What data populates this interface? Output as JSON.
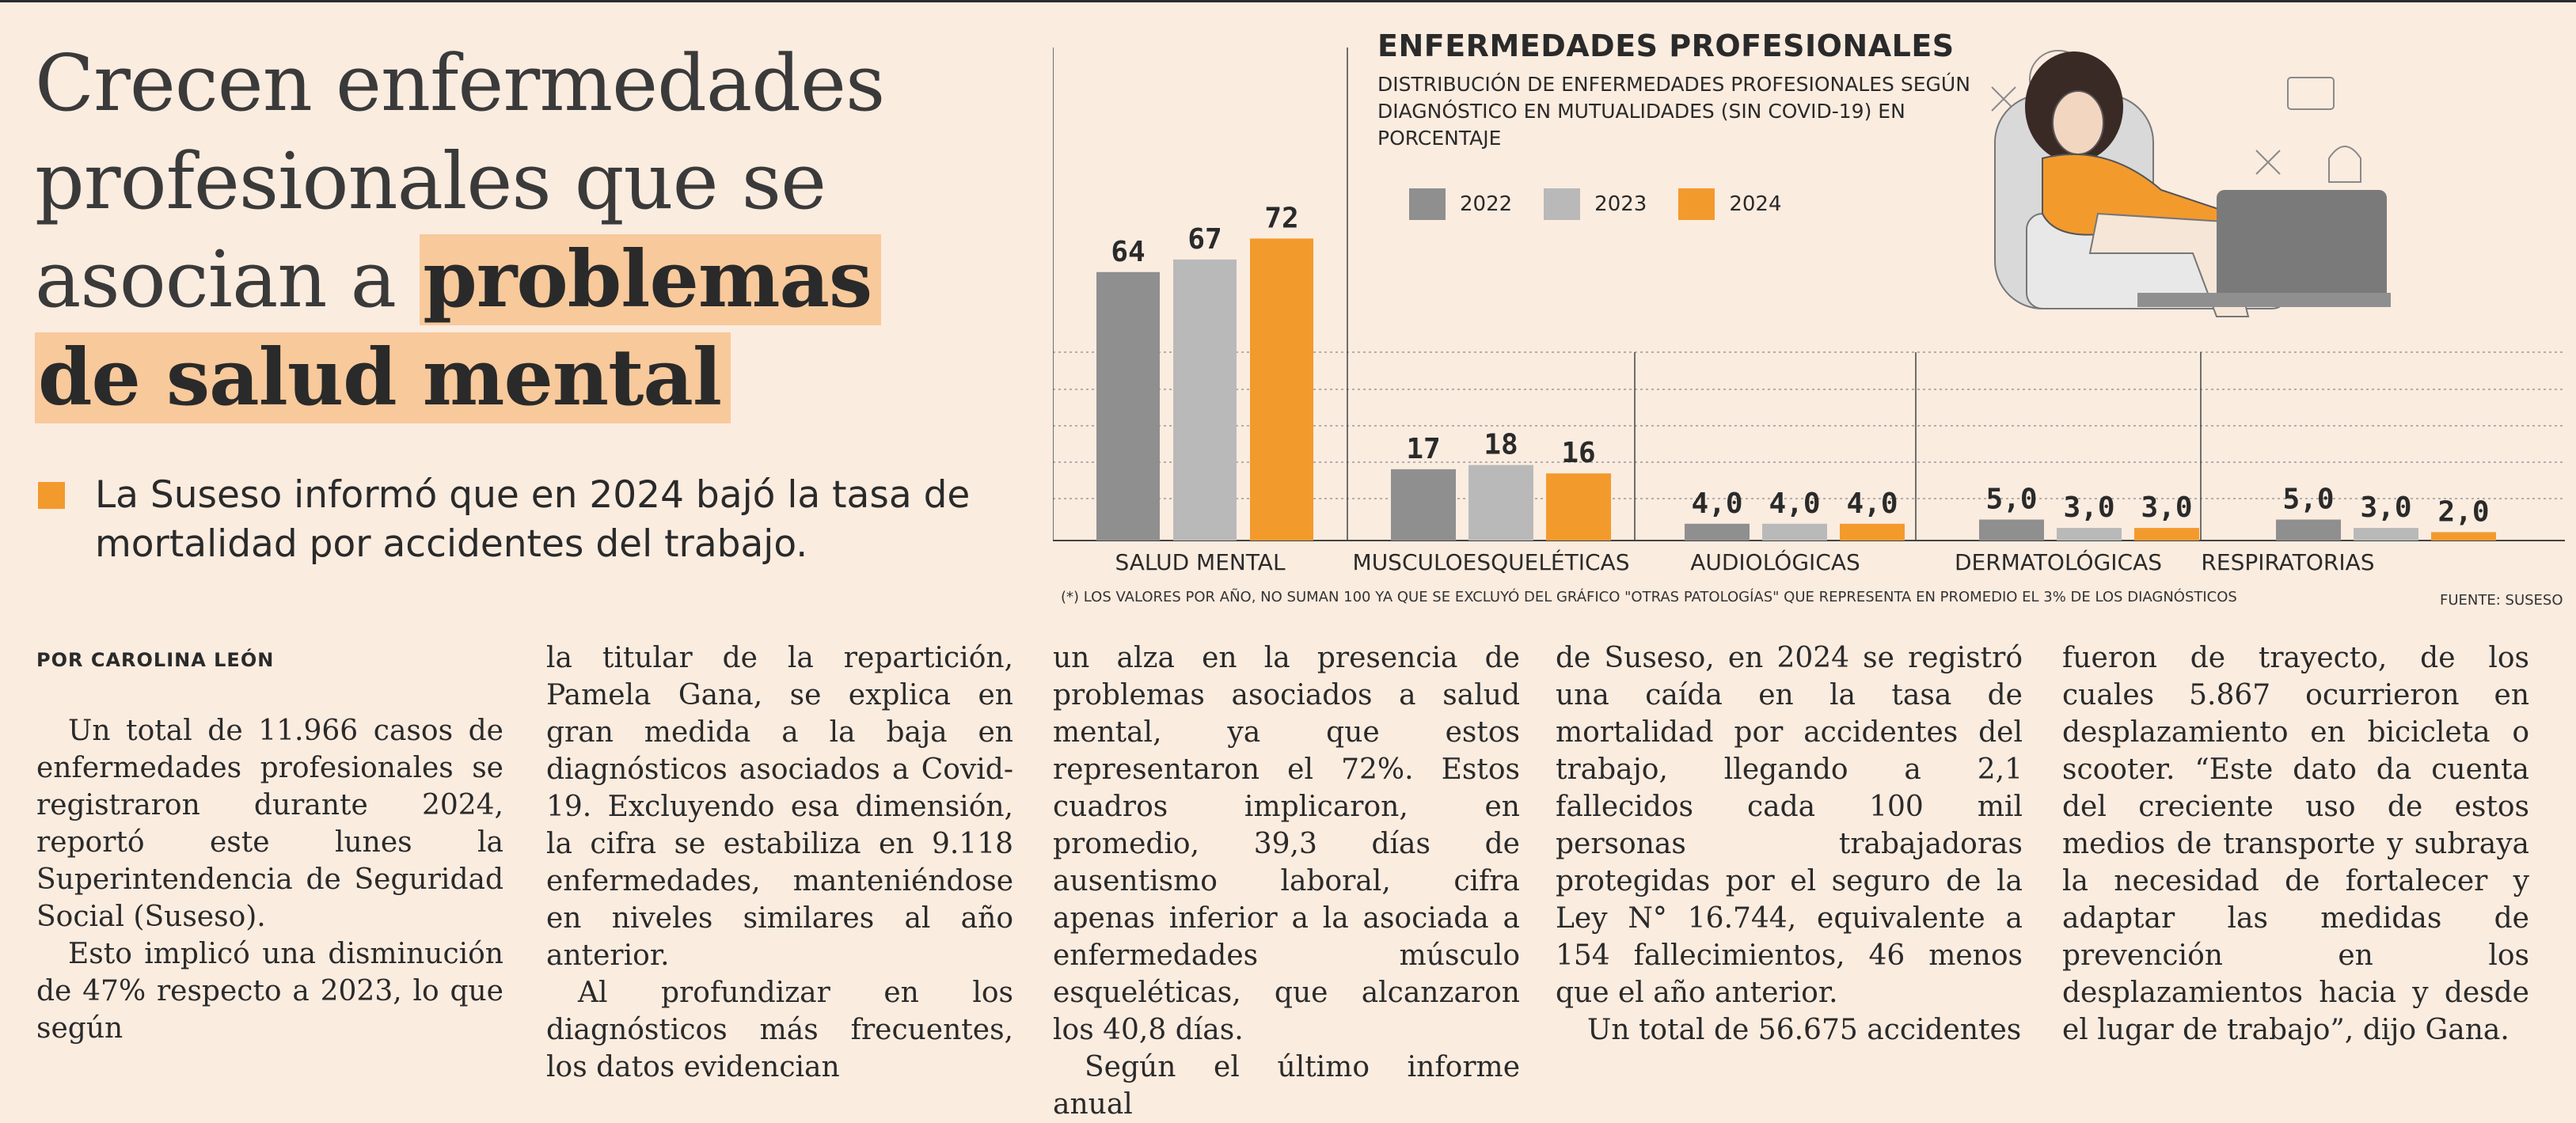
{
  "headline": {
    "line1": "Crecen enfermedades",
    "line2": "profesionales que se",
    "line3": "asocian a ",
    "highlight1": "problemas",
    "highlight2": "de salud mental"
  },
  "lead": "La Suseso informó que en 2024 bajó la tasa de mortalidad por accidentes del trabajo.",
  "byline": "POR CAROLINA LEÓN",
  "columns": [
    [
      "Un total de 11.966 casos de enfermedades profesionales se registraron durante 2024, reportó este lunes la Superintendencia de Seguridad Social (Suseso).",
      "Esto implicó una disminución de 47% respecto a 2023, lo que según"
    ],
    [
      "la titular de la repartición, Pamela Gana, se explica en gran medida a la baja en diagnósticos asociados a Covid-19. Excluyendo esa dimensión, la cifra se estabiliza en 9.118 enfermedades, manteniéndose en niveles similares al año anterior.",
      "Al profundizar en los diagnósticos más frecuentes, los datos evidencian"
    ],
    [
      "un alza en la presencia de problemas asociados a salud mental, ya que estos representaron el 72%. Estos cuadros implicaron, en promedio, 39,3 días de ausentismo laboral, cifra apenas inferior a la asociada a enfermedades músculo esqueléticas, que alcanzaron los 40,8 días.",
      "Según el último informe anual"
    ],
    [
      "de Suseso, en 2024 se registró una caída en la tasa de mortalidad por accidentes del trabajo, llegando a 2,1 fallecidos cada 100 mil personas trabajadoras protegidas por el seguro de la Ley N° 16.744, equivalente a 154 fallecimientos, 46 menos que el año anterior.",
      "Un total de 56.675 accidentes"
    ],
    [
      "fueron de trayecto, de los cuales 5.867 ocurrieron en desplazamiento en bicicleta o scooter. “Este dato da cuenta del creciente uso de estos medios de transporte y subraya la necesidad de fortalecer y adaptar las medidas de prevención en los desplazamientos hacia y desde el lugar de trabajo”, dijo Gana."
    ]
  ],
  "chart_data": {
    "type": "bar",
    "title": "ENFERMEDADES PROFESIONALES",
    "subtitle": "DISTRIBUCIÓN DE ENFERMEDADES PROFESIONALES SEGÚN DIAGNÓSTICO EN MUTUALIDADES (SIN COVID-19) EN PORCENTAJE",
    "categories": [
      "SALUD MENTAL",
      "MUSCULOESQUELÉTICAS",
      "AUDIOLÓGICAS",
      "DERMATOLÓGICAS",
      "RESPIRATORIAS"
    ],
    "series": [
      {
        "name": "2022",
        "color": "#8f8f8f",
        "values": [
          64,
          17,
          4.0,
          5.0,
          5.0
        ],
        "labels": [
          "64",
          "17",
          "4,0",
          "5,0",
          "5,0"
        ]
      },
      {
        "name": "2023",
        "color": "#b9b9b9",
        "values": [
          67,
          18,
          4.0,
          3.0,
          3.0
        ],
        "labels": [
          "67",
          "18",
          "4,0",
          "3,0",
          "3,0"
        ]
      },
      {
        "name": "2024",
        "color": "#f39a2d",
        "values": [
          72,
          16,
          4.0,
          3.0,
          2.0
        ],
        "labels": [
          "72",
          "16",
          "4,0",
          "3,0",
          "2,0"
        ]
      }
    ],
    "footnote": "(*) LOS VALORES POR AÑO, NO SUMAN 100 YA QUE SE EXCLUYÓ DEL GRÁFICO \"OTRAS PATOLOGÍAS\" QUE REPRESENTA EN PROMEDIO EL 3% DE LOS DIAGNÓSTICOS",
    "source": "FUENTE: SUSESO",
    "legend_position": "top"
  }
}
